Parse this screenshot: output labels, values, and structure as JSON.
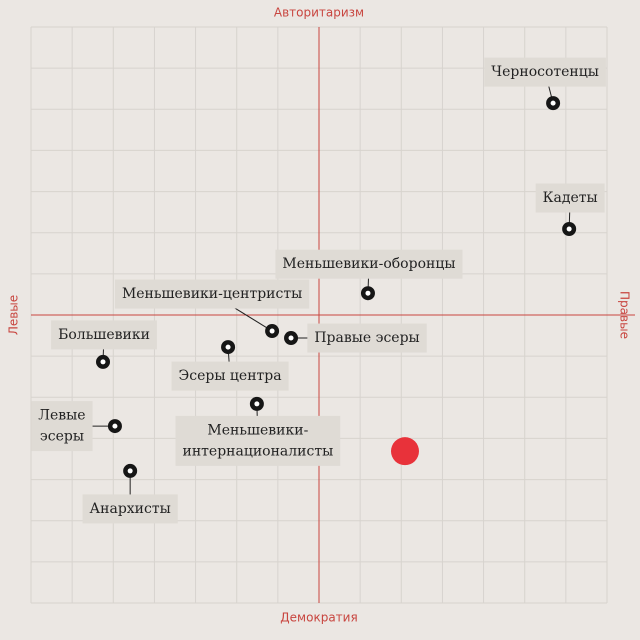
{
  "chart_data": {
    "type": "scatter",
    "axis_labels": {
      "top": "Авторитаризм",
      "bottom": "Демократия",
      "left": "Левые",
      "right": "Правые"
    },
    "xlim": [
      -7,
      7
    ],
    "ylim": [
      -7,
      7
    ],
    "grid": true,
    "marker_color": "#161616",
    "axis_color": "#c8453f",
    "points": [
      {
        "label": [
          "Черносотенцы"
        ],
        "x": 5.69,
        "y": 5.15
      },
      {
        "label": [
          "Кадеты"
        ],
        "x": 6.08,
        "y": 2.09
      },
      {
        "label": [
          "Меньшевики-оборонцы"
        ],
        "x": 1.19,
        "y": 0.53
      },
      {
        "label": [
          "Меньшевики-центристы"
        ],
        "x": -1.14,
        "y": -0.39
      },
      {
        "label": [
          "Правые эсеры"
        ],
        "x": -0.68,
        "y": -0.56
      },
      {
        "label": [
          "Большевики"
        ],
        "x": -5.25,
        "y": -1.14
      },
      {
        "label": [
          "Эсеры центра"
        ],
        "x": -2.21,
        "y": -0.78
      },
      {
        "label": [
          "Меньшевики-",
          "интернационалисты"
        ],
        "x": -1.51,
        "y": -2.16
      },
      {
        "label": [
          "Левые",
          "эсеры"
        ],
        "x": -4.96,
        "y": -2.7
      },
      {
        "label": [
          "Анархисты"
        ],
        "x": -4.59,
        "y": -3.79
      }
    ],
    "highlight": {
      "x": 2.09,
      "y": -3.31,
      "color": "#e8323a"
    }
  }
}
